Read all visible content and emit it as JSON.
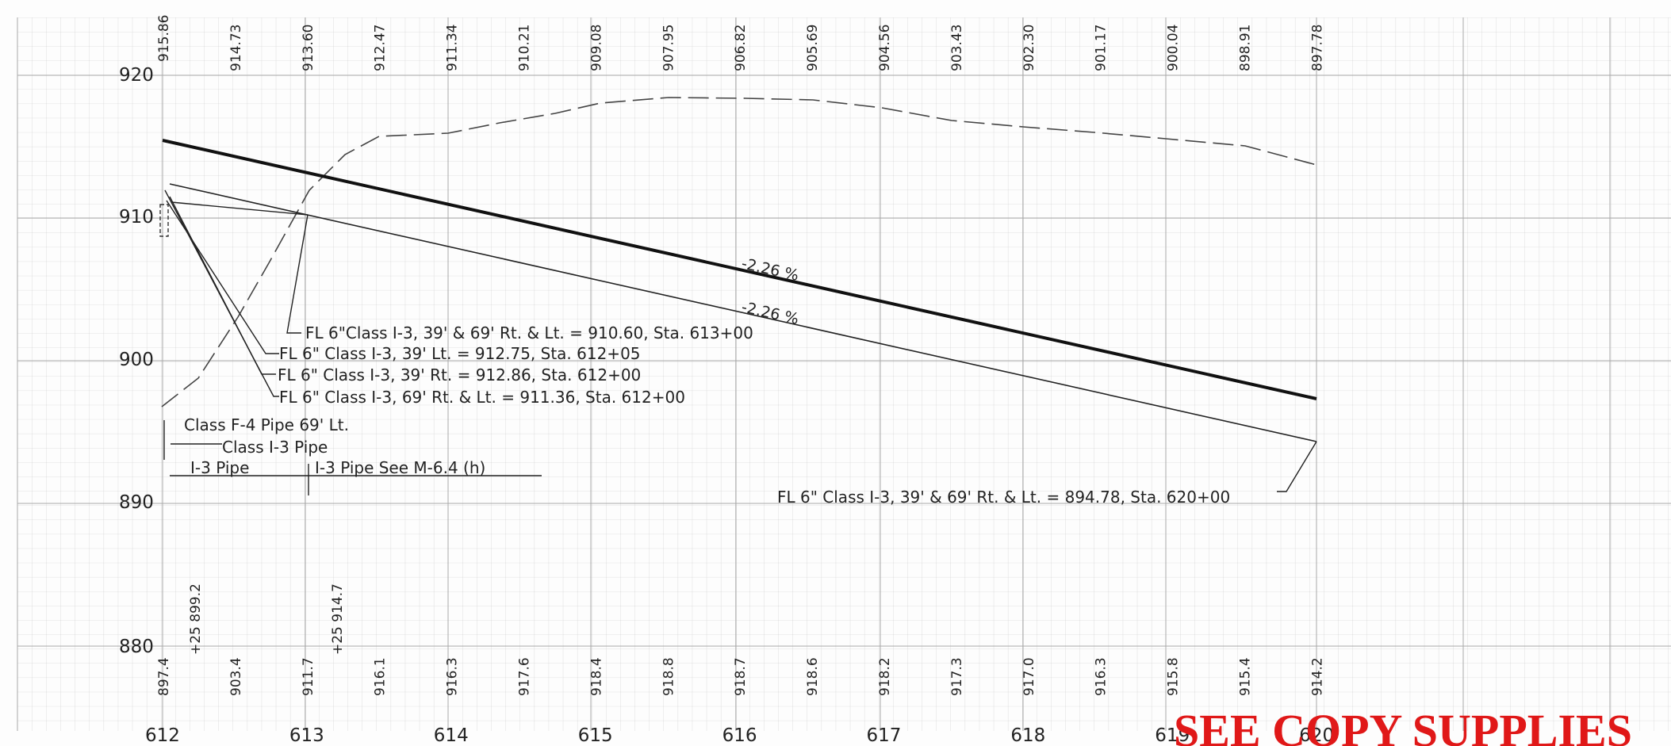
{
  "elevation_labels": [
    "920",
    "910",
    "900",
    "890",
    "880"
  ],
  "station_labels": [
    "612",
    "613",
    "614",
    "615",
    "616",
    "617",
    "618",
    "619",
    "620"
  ],
  "grade_elevations": [
    "915.86",
    "914.73",
    "913.60",
    "912.47",
    "911.34",
    "910.21",
    "909.08",
    "907.95",
    "906.82",
    "905.69",
    "904.56",
    "903.43",
    "902.30",
    "901.17",
    "900.04",
    "898.91",
    "897.78"
  ],
  "ground_elevations": [
    "897.4",
    "903.4",
    "911.7",
    "916.1",
    "916.3",
    "917.6",
    "918.4",
    "918.8",
    "918.7",
    "918.6",
    "918.2",
    "917.3",
    "917.0",
    "916.3",
    "915.8",
    "915.4",
    "914.2"
  ],
  "plus_labels": [
    "+25 899.2",
    "+25 914.7"
  ],
  "grades": [
    "-2.26 %",
    "-2.26 %"
  ],
  "notes": {
    "n1": "FL 6\"Class I-3, 39' & 69' Rt. & Lt. = 910.60, Sta. 613+00",
    "n2": "FL 6\" Class I-3, 39' Lt. = 912.75, Sta. 612+05",
    "n3": "FL 6\" Class I-3, 39' Rt. = 912.86, Sta. 612+00",
    "n4": "FL 6\" Class I-3, 69' Rt. & Lt. = 911.36, Sta. 612+00",
    "n5": "FL 6\" Class I-3, 39' & 69' Rt. & Lt. = 894.78, Sta. 620+00"
  },
  "pipe_labels": {
    "f4": "Class F-4 Pipe 69' Lt.",
    "i3": "Class I-3 Pipe",
    "i3_short": "I-3 Pipe",
    "i3_see": "I-3 Pipe See M-6.4 (h)"
  },
  "stamp": "SEE COPY SUPPLIES"
}
